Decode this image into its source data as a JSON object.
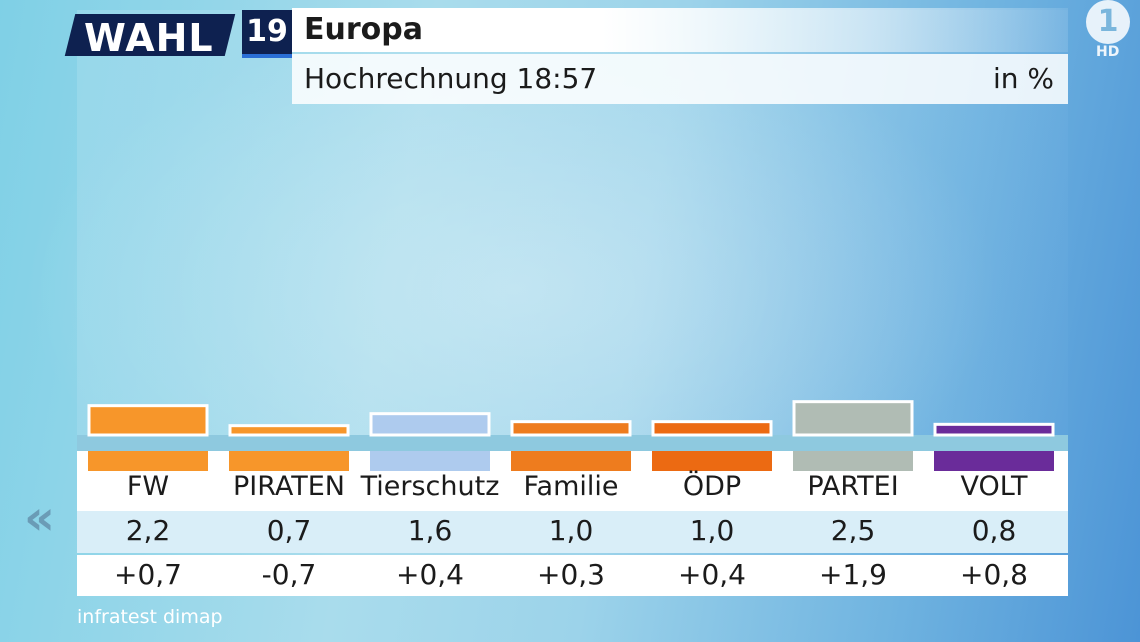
{
  "logo": {
    "wahl": "WAHL",
    "year": "19"
  },
  "header": {
    "title": "Europa",
    "subtitle": "Hochrechnung 18:57",
    "unit": "in %"
  },
  "channel": {
    "logo": "1",
    "hd": "HD"
  },
  "nav": {
    "back_icon": "double-chevron-left-icon",
    "back_symbol": "«"
  },
  "source": "infratest dimap",
  "chart_data": {
    "type": "bar",
    "title": "Europa",
    "subtitle": "Hochrechnung 18:57",
    "unit": "in %",
    "categories": [
      "FW",
      "PIRATEN",
      "Tierschutz",
      "Familie",
      "ÖDP",
      "PARTEI",
      "VOLT"
    ],
    "values": [
      2.2,
      0.7,
      1.6,
      1.0,
      1.0,
      2.5,
      0.8
    ],
    "values_label": [
      "2,2",
      "0,7",
      "1,6",
      "1,0",
      "1,0",
      "2,5",
      "0,8"
    ],
    "diffs_label": [
      "+0,7",
      "-0,7",
      "+0,4",
      "+0,3",
      "+0,4",
      "+1,9",
      "+0,8"
    ],
    "colors": [
      "#f7962a",
      "#f7962a",
      "#aecbee",
      "#ee7c1e",
      "#ec6a12",
      "#b0bcb4",
      "#6a2c9a"
    ],
    "ylim": [
      0,
      30
    ]
  }
}
